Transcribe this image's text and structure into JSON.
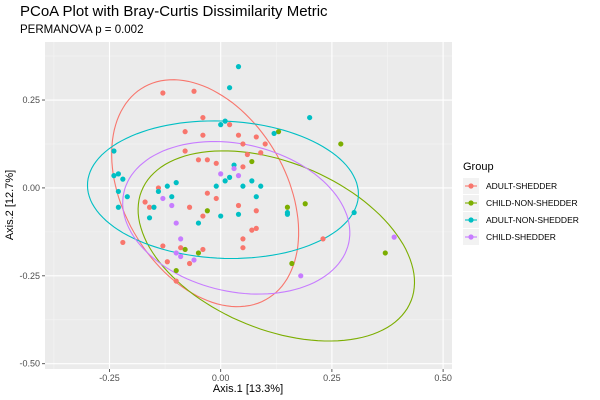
{
  "chart_data": {
    "type": "scatter",
    "title": "PCoA Plot with Bray-Curtis Dissimilarity Metric",
    "subtitle": "PERMANOVA p = 0.002",
    "xlabel": "Axis.1  [13.3%]",
    "ylabel": "Axis.2  [12.7%]",
    "xlim": [
      -0.395,
      0.52
    ],
    "ylim": [
      -0.515,
      0.415
    ],
    "x_ticks": [
      -0.25,
      0,
      0.25,
      0.5
    ],
    "x_tick_labels": [
      "-0.25",
      "0.00",
      "0.25",
      "0.50"
    ],
    "y_ticks": [
      -0.5,
      -0.25,
      0,
      0.25
    ],
    "y_tick_labels": [
      "-0.50",
      "-0.25",
      "0.00",
      "0.25"
    ],
    "grid": true,
    "legend_title": "Group",
    "legend_position": "right",
    "series": [
      {
        "name": "ADULT-SHEDDER",
        "color": "#F8766D",
        "points": [
          [
            -0.13,
            0.27
          ],
          [
            -0.06,
            0.275
          ],
          [
            -0.04,
            0.2
          ],
          [
            -0.08,
            0.16
          ],
          [
            -0.04,
            0.15
          ],
          [
            0.02,
            0.18
          ],
          [
            0.04,
            0.15
          ],
          [
            0.05,
            0.125
          ],
          [
            0.08,
            0.145
          ],
          [
            0.1,
            0.125
          ],
          [
            0.09,
            0.1
          ],
          [
            0.06,
            0.095
          ],
          [
            -0.08,
            0.105
          ],
          [
            -0.05,
            0.08
          ],
          [
            -0.03,
            0.08
          ],
          [
            -0.01,
            0.07
          ],
          [
            0.05,
            0.06
          ],
          [
            -0.14,
            0.0
          ],
          [
            -0.03,
            -0.015
          ],
          [
            -0.01,
            -0.03
          ],
          [
            -0.17,
            -0.04
          ],
          [
            -0.16,
            -0.055
          ],
          [
            -0.07,
            -0.055
          ],
          [
            -0.04,
            -0.08
          ],
          [
            0.04,
            -0.05
          ],
          [
            0.08,
            -0.065
          ],
          [
            0.07,
            -0.12
          ],
          [
            0.08,
            -0.115
          ],
          [
            0.05,
            -0.145
          ],
          [
            0.05,
            -0.17
          ],
          [
            0.23,
            -0.145
          ],
          [
            -0.22,
            -0.155
          ],
          [
            -0.13,
            -0.165
          ],
          [
            -0.09,
            -0.17
          ],
          [
            -0.04,
            -0.175
          ],
          [
            -0.12,
            -0.21
          ],
          [
            -0.07,
            -0.215
          ],
          [
            -0.1,
            -0.265
          ]
        ]
      },
      {
        "name": "CHILD-NON-SHEDDER",
        "color": "#7CAE00",
        "points": [
          [
            0.13,
            0.16
          ],
          [
            0.27,
            0.125
          ],
          [
            0.07,
            0.075
          ],
          [
            0.19,
            -0.045
          ],
          [
            0.15,
            -0.055
          ],
          [
            -0.03,
            -0.065
          ],
          [
            -0.08,
            -0.175
          ],
          [
            -0.05,
            -0.185
          ],
          [
            0.16,
            -0.215
          ],
          [
            0.37,
            -0.185
          ],
          [
            -0.1,
            -0.235
          ]
        ]
      },
      {
        "name": "ADULT-NON-SHEDDER",
        "color": "#00BFC4",
        "points": [
          [
            0.04,
            0.345
          ],
          [
            0.02,
            0.285
          ],
          [
            0.0,
            0.18
          ],
          [
            0.01,
            0.19
          ],
          [
            0.2,
            0.2
          ],
          [
            0.12,
            0.155
          ],
          [
            -0.24,
            0.105
          ],
          [
            0.03,
            0.065
          ],
          [
            0.07,
            0.02
          ],
          [
            0.02,
            0.03
          ],
          [
            0.01,
            0.02
          ],
          [
            -0.24,
            0.035
          ],
          [
            -0.23,
            0.04
          ],
          [
            -0.22,
            0.025
          ],
          [
            -0.23,
            -0.01
          ],
          [
            -0.12,
            0.005
          ],
          [
            -0.1,
            0.015
          ],
          [
            -0.14,
            -0.01
          ],
          [
            -0.21,
            -0.025
          ],
          [
            -0.11,
            -0.025
          ],
          [
            -0.01,
            0.005
          ],
          [
            0.05,
            0.005
          ],
          [
            0.09,
            0.005
          ],
          [
            0.08,
            -0.025
          ],
          [
            -0.23,
            -0.055
          ],
          [
            -0.16,
            -0.085
          ],
          [
            0.0,
            -0.08
          ],
          [
            0.04,
            -0.075
          ],
          [
            0.15,
            -0.07
          ],
          [
            0.15,
            -0.075
          ],
          [
            0.3,
            -0.07
          ],
          [
            -0.15,
            -0.055
          ],
          [
            -0.05,
            -0.1
          ]
        ]
      },
      {
        "name": "CHILD-SHEDDER",
        "color": "#C77CFF",
        "points": [
          [
            0.03,
            0.055
          ],
          [
            0.04,
            0.035
          ],
          [
            0.0,
            0.04
          ],
          [
            -0.13,
            -0.03
          ],
          [
            -0.11,
            -0.05
          ],
          [
            -0.09,
            -0.145
          ],
          [
            -0.1,
            -0.185
          ],
          [
            -0.09,
            -0.195
          ],
          [
            -0.1,
            -0.1
          ],
          [
            0.18,
            -0.25
          ],
          [
            0.39,
            -0.14
          ],
          [
            -0.06,
            -0.205
          ]
        ]
      }
    ],
    "ellipses": [
      {
        "series": "ADULT-SHEDDER",
        "cx": -0.035,
        "cy": -0.015,
        "rx": 0.19,
        "ry": 0.335,
        "rotation_deg": 19
      },
      {
        "series": "CHILD-NON-SHEDDER",
        "cx": 0.125,
        "cy": -0.165,
        "rx": 0.345,
        "ry": 0.225,
        "rotation_deg": -35
      },
      {
        "series": "ADULT-NON-SHEDDER",
        "cx": 0.005,
        "cy": -0.005,
        "rx": 0.305,
        "ry": 0.195,
        "rotation_deg": -4
      },
      {
        "series": "CHILD-SHEDDER",
        "cx": 0.035,
        "cy": -0.085,
        "rx": 0.265,
        "ry": 0.205,
        "rotation_deg": -25
      }
    ]
  }
}
